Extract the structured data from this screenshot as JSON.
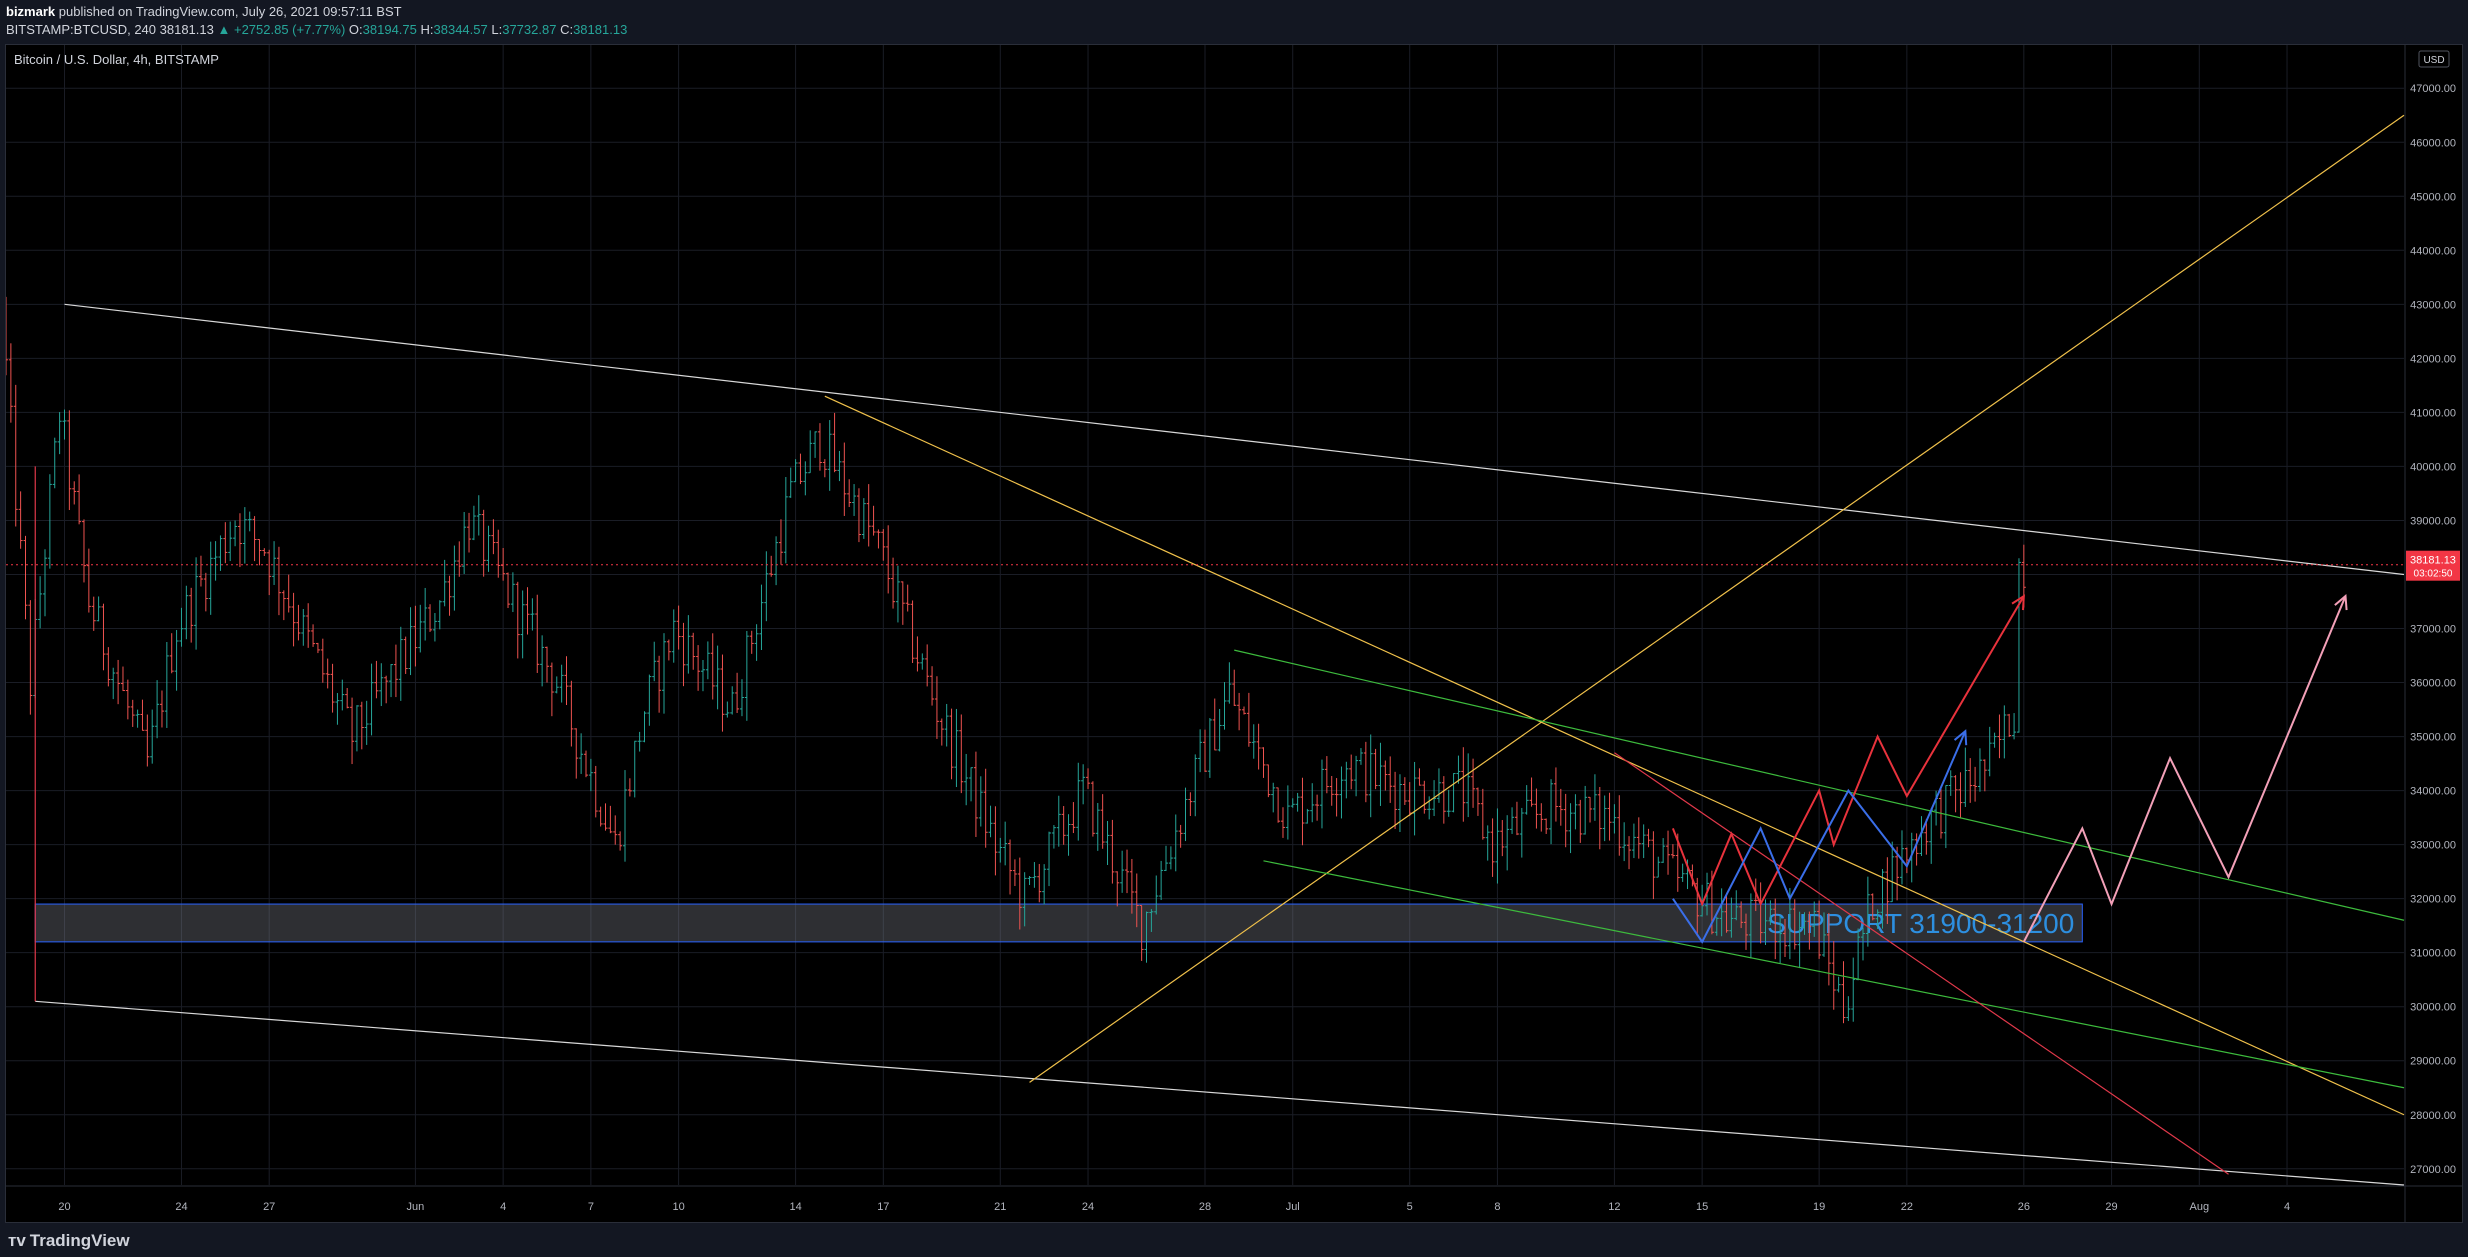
{
  "header": {
    "author": "bizmark",
    "published_text": "published on TradingView.com, July 26, 2021 09:57:11 BST",
    "symbol_interval": "BITSTAMP:BTCUSD, 240",
    "last": "38181.13",
    "change": "▲ +2752.85 (+7.77%)",
    "o_label": "O:",
    "o_value": "38194.75",
    "h_label": "H:",
    "h_value": "38344.57",
    "l_label": "L:",
    "l_value": "37732.87",
    "c_label": "C:",
    "c_value": "38181.13"
  },
  "footer": {
    "brand": "TradingView",
    "logo": "tradingview-logo-icon"
  },
  "chart_data": {
    "type": "candlestick",
    "title": "Bitcoin / U.S. Dollar, 4h, BITSTAMP",
    "currency_label": "USD",
    "ylim": [
      26700,
      47800
    ],
    "y_ticks": [
      27000,
      28000,
      29000,
      30000,
      31000,
      32000,
      33000,
      34000,
      35000,
      36000,
      37000,
      38000,
      39000,
      40000,
      41000,
      42000,
      43000,
      44000,
      45000,
      46000,
      47000
    ],
    "x_range": [
      "2021-05-18",
      "2021-08-08"
    ],
    "x_ticks": [
      {
        "label": "20",
        "date": "2021-05-20"
      },
      {
        "label": "24",
        "date": "2021-05-24"
      },
      {
        "label": "27",
        "date": "2021-05-27"
      },
      {
        "label": "Jun",
        "date": "2021-06-01"
      },
      {
        "label": "4",
        "date": "2021-06-04"
      },
      {
        "label": "7",
        "date": "2021-06-07"
      },
      {
        "label": "10",
        "date": "2021-06-10"
      },
      {
        "label": "14",
        "date": "2021-06-14"
      },
      {
        "label": "17",
        "date": "2021-06-17"
      },
      {
        "label": "21",
        "date": "2021-06-21"
      },
      {
        "label": "24",
        "date": "2021-06-24"
      },
      {
        "label": "28",
        "date": "2021-06-28"
      },
      {
        "label": "Jul",
        "date": "2021-07-01"
      },
      {
        "label": "5",
        "date": "2021-07-05"
      },
      {
        "label": "8",
        "date": "2021-07-08"
      },
      {
        "label": "12",
        "date": "2021-07-12"
      },
      {
        "label": "15",
        "date": "2021-07-15"
      },
      {
        "label": "19",
        "date": "2021-07-19"
      },
      {
        "label": "22",
        "date": "2021-07-22"
      },
      {
        "label": "26",
        "date": "2021-07-26"
      },
      {
        "label": "29",
        "date": "2021-07-29"
      },
      {
        "label": "Aug",
        "date": "2021-08-01"
      },
      {
        "label": "4",
        "date": "2021-08-04"
      }
    ],
    "last_price": {
      "value": 38181.13,
      "label": "38181.13",
      "countdown": "03:02:50",
      "color": "#f23645"
    },
    "colors": {
      "up": "#26a69a",
      "down": "#ef5350",
      "grid": "#1a1d26"
    },
    "price_anchors": [
      {
        "date": "2021-05-18",
        "price": 43000
      },
      {
        "date": "2021-05-19",
        "price": 36000
      },
      {
        "date": "2021-05-20",
        "price": 41000
      },
      {
        "date": "2021-05-21",
        "price": 37500
      },
      {
        "date": "2021-05-23",
        "price": 34500
      },
      {
        "date": "2021-05-24",
        "price": 37000
      },
      {
        "date": "2021-05-26",
        "price": 39000
      },
      {
        "date": "2021-05-27",
        "price": 38500
      },
      {
        "date": "2021-05-30",
        "price": 35000
      },
      {
        "date": "2021-06-02",
        "price": 37500
      },
      {
        "date": "2021-06-03",
        "price": 39000
      },
      {
        "date": "2021-06-06",
        "price": 36000
      },
      {
        "date": "2021-06-08",
        "price": 33000
      },
      {
        "date": "2021-06-09",
        "price": 35500
      },
      {
        "date": "2021-06-10",
        "price": 37000
      },
      {
        "date": "2021-06-12",
        "price": 35500
      },
      {
        "date": "2021-06-14",
        "price": 39500
      },
      {
        "date": "2021-06-15",
        "price": 40500
      },
      {
        "date": "2021-06-17",
        "price": 38500
      },
      {
        "date": "2021-06-19",
        "price": 35500
      },
      {
        "date": "2021-06-21",
        "price": 33000
      },
      {
        "date": "2021-06-22",
        "price": 32000
      },
      {
        "date": "2021-06-24",
        "price": 34000
      },
      {
        "date": "2021-06-26",
        "price": 31500
      },
      {
        "date": "2021-06-28",
        "price": 34500
      },
      {
        "date": "2021-06-29",
        "price": 35800
      },
      {
        "date": "2021-07-01",
        "price": 33500
      },
      {
        "date": "2021-07-03",
        "price": 34500
      },
      {
        "date": "2021-07-05",
        "price": 34000
      },
      {
        "date": "2021-07-07",
        "price": 34000
      },
      {
        "date": "2021-07-08",
        "price": 33000
      },
      {
        "date": "2021-07-10",
        "price": 33700
      },
      {
        "date": "2021-07-12",
        "price": 33500
      },
      {
        "date": "2021-07-14",
        "price": 32500
      },
      {
        "date": "2021-07-16",
        "price": 31600
      },
      {
        "date": "2021-07-19",
        "price": 31500
      },
      {
        "date": "2021-07-20",
        "price": 30000
      },
      {
        "date": "2021-07-21",
        "price": 32000
      },
      {
        "date": "2021-07-23",
        "price": 33500
      },
      {
        "date": "2021-07-25",
        "price": 34500
      },
      {
        "date": "2021-07-25T20:00",
        "price": 35500
      },
      {
        "date": "2021-07-26",
        "price": 38181
      }
    ],
    "support_zone": {
      "label": "SUPPORT 31900-31200",
      "low": 31200,
      "high": 31900,
      "from": "2021-05-19",
      "to": "2021-07-28"
    },
    "trendlines": [
      {
        "color": "#d9d9d9",
        "from": {
          "date": "2021-05-20",
          "price": 43000
        },
        "to": {
          "date": "2021-08-08",
          "price": 38000
        }
      },
      {
        "color": "#d9d9d9",
        "from": {
          "date": "2021-05-19",
          "price": 30100
        },
        "to": {
          "date": "2021-08-08",
          "price": 26700
        }
      },
      {
        "color": "#f0c14b",
        "from": {
          "date": "2021-06-15",
          "price": 41300
        },
        "to": {
          "date": "2021-08-08",
          "price": 28000
        }
      },
      {
        "color": "#f0c14b",
        "from": {
          "date": "2021-06-22",
          "price": 28600
        },
        "to": {
          "date": "2021-08-08",
          "price": 46500
        }
      },
      {
        "color": "#3dbb3d",
        "from": {
          "date": "2021-06-29",
          "price": 36600
        },
        "to": {
          "date": "2021-08-08",
          "price": 31600
        }
      },
      {
        "color": "#3dbb3d",
        "from": {
          "date": "2021-06-30",
          "price": 32700
        },
        "to": {
          "date": "2021-08-08",
          "price": 28500
        }
      },
      {
        "color": "#e0384a",
        "from": {
          "date": "2021-07-12",
          "price": 34700
        },
        "to": {
          "date": "2021-08-02",
          "price": 26900
        }
      },
      {
        "color": "#e0384a",
        "from": {
          "date": "2021-05-19",
          "price": 40000
        },
        "to": {
          "date": "2021-05-19",
          "price": 30100
        }
      }
    ],
    "projections": [
      {
        "color": "#e8323c",
        "points": [
          {
            "date": "2021-07-14",
            "price": 33300
          },
          {
            "date": "2021-07-15",
            "price": 31900
          },
          {
            "date": "2021-07-16",
            "price": 33200
          },
          {
            "date": "2021-07-17",
            "price": 31900
          },
          {
            "date": "2021-07-19",
            "price": 34000
          },
          {
            "date": "2021-07-19T12:00",
            "price": 33000
          },
          {
            "date": "2021-07-21",
            "price": 35000
          },
          {
            "date": "2021-07-22",
            "price": 33900
          },
          {
            "date": "2021-07-26",
            "price": 37600
          }
        ]
      },
      {
        "color": "#3a6ee8",
        "points": [
          {
            "date": "2021-07-14",
            "price": 32000
          },
          {
            "date": "2021-07-15",
            "price": 31200
          },
          {
            "date": "2021-07-17",
            "price": 33300
          },
          {
            "date": "2021-07-18",
            "price": 32000
          },
          {
            "date": "2021-07-20",
            "price": 34000
          },
          {
            "date": "2021-07-22",
            "price": 32600
          },
          {
            "date": "2021-07-24",
            "price": 35100
          }
        ]
      },
      {
        "color": "#f3a0b8",
        "points": [
          {
            "date": "2021-07-26",
            "price": 31200
          },
          {
            "date": "2021-07-28",
            "price": 33300
          },
          {
            "date": "2021-07-29",
            "price": 31900
          },
          {
            "date": "2021-07-31",
            "price": 34600
          },
          {
            "date": "2021-08-02",
            "price": 32400
          },
          {
            "date": "2021-08-06",
            "price": 37600
          }
        ]
      }
    ]
  }
}
